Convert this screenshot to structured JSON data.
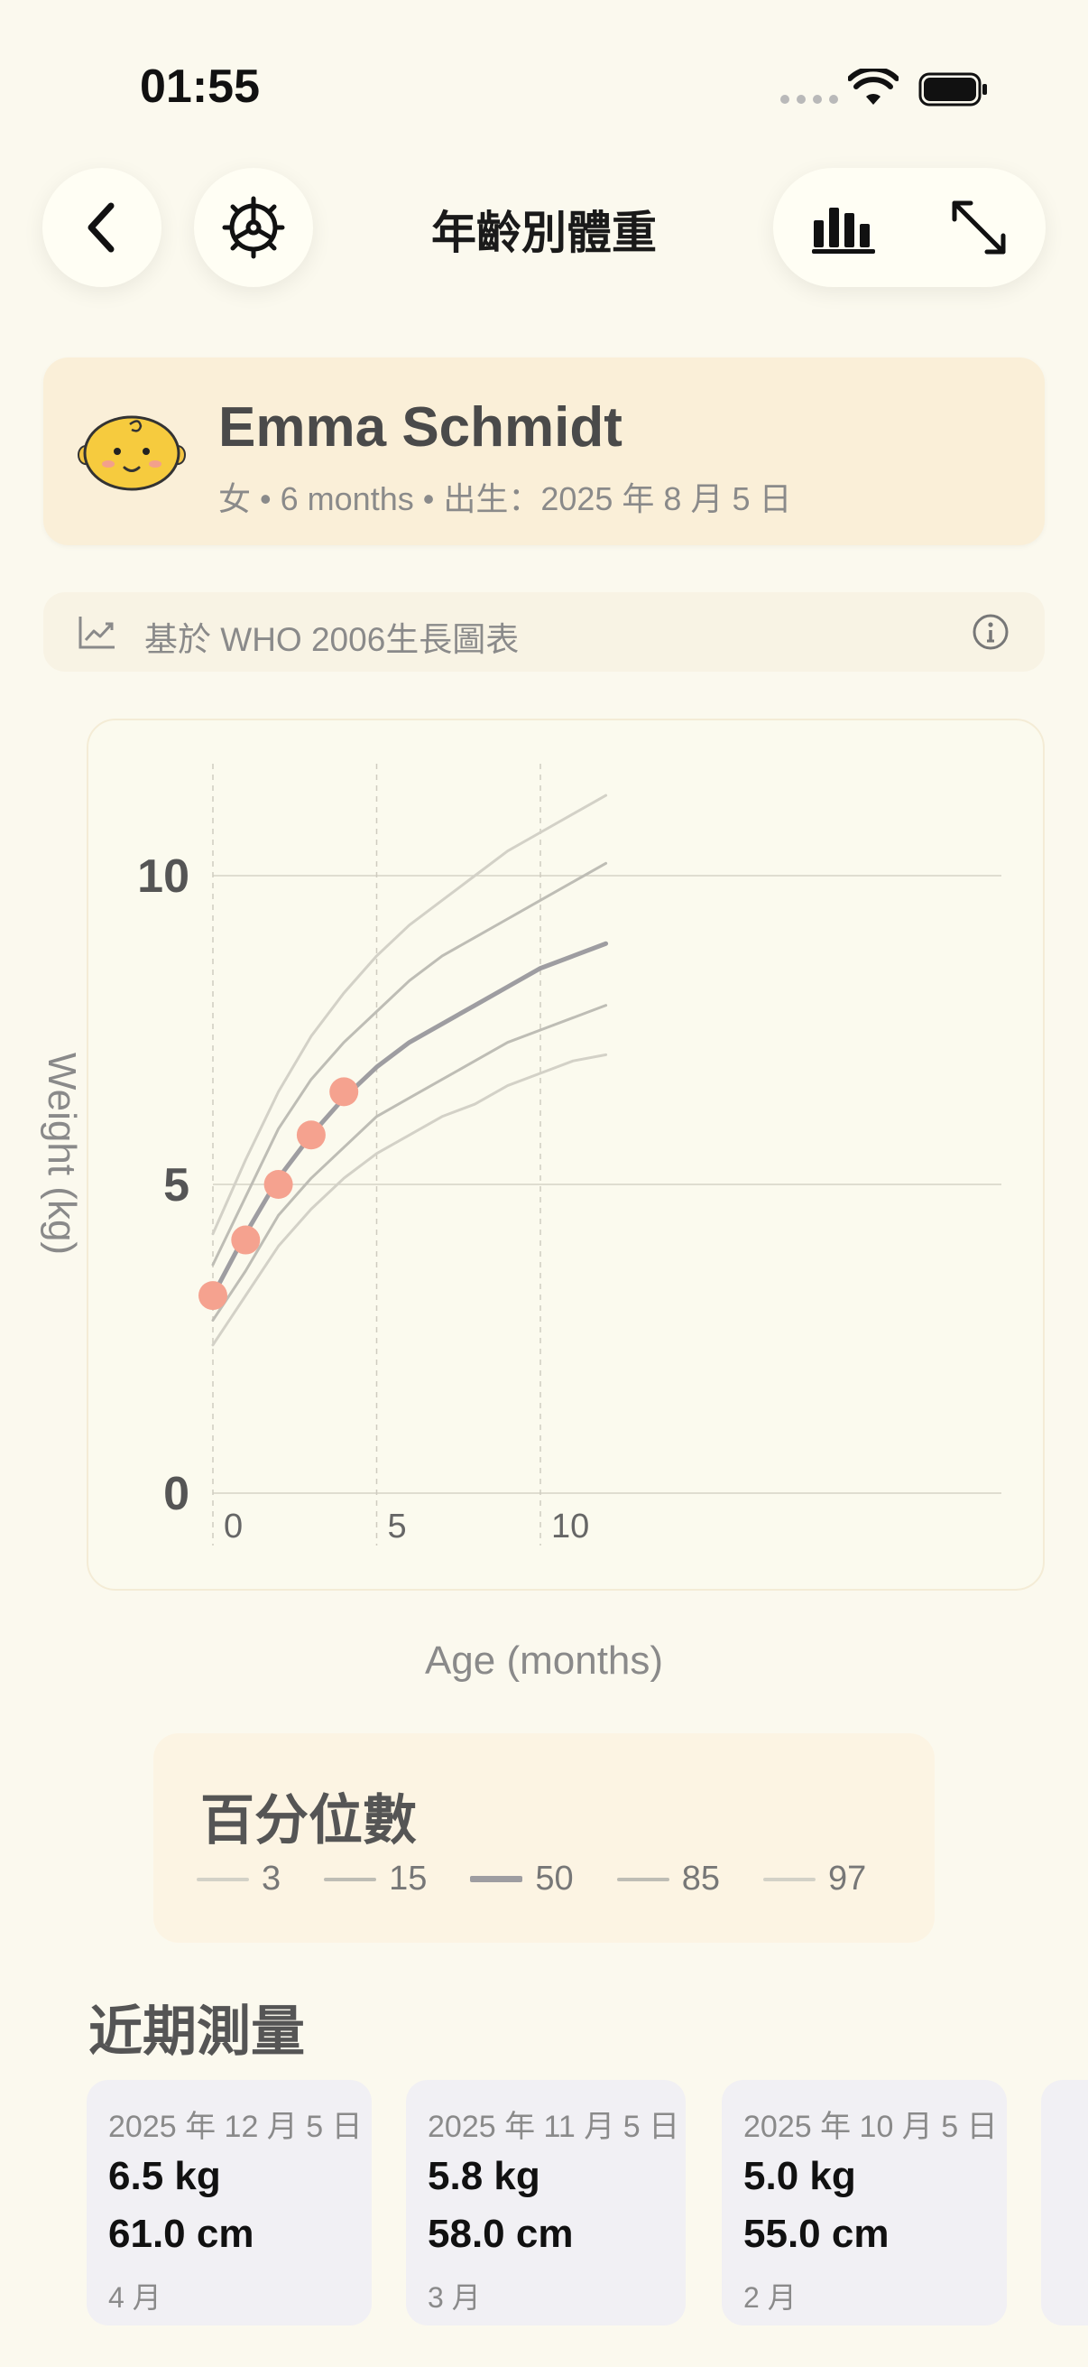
{
  "status": {
    "time": "01:55"
  },
  "header": {
    "title": "年齡別體重"
  },
  "profile": {
    "name": "Emma Schmidt",
    "gender": "女",
    "age": "6 months",
    "birth": "出生：2025 年 8 月 5 日"
  },
  "source": {
    "text": "基於 WHO 2006生長圖表"
  },
  "chart_data": {
    "type": "line",
    "xlabel": "Age (months)",
    "ylabel": "Weight (kg)",
    "xlim": [
      0,
      12
    ],
    "ylim": [
      0,
      12
    ],
    "x_ticks": [
      "0",
      "5",
      "10"
    ],
    "y_ticks": [
      "0",
      "5",
      "10"
    ],
    "grid": "on",
    "series": [
      {
        "name": "3",
        "color": "#D3D1C7",
        "width": 3,
        "x": [
          0,
          1,
          2,
          3,
          4,
          5,
          6,
          7,
          8,
          9,
          10,
          11,
          12
        ],
        "values": [
          2.4,
          3.2,
          4.0,
          4.6,
          5.1,
          5.5,
          5.8,
          6.1,
          6.3,
          6.6,
          6.8,
          7.0,
          7.1
        ]
      },
      {
        "name": "15",
        "color": "#BEBDB5",
        "width": 3,
        "x": [
          0,
          1,
          2,
          3,
          4,
          5,
          6,
          7,
          8,
          9,
          10,
          11,
          12
        ],
        "values": [
          2.8,
          3.6,
          4.5,
          5.1,
          5.6,
          6.1,
          6.4,
          6.7,
          7.0,
          7.3,
          7.5,
          7.7,
          7.9
        ]
      },
      {
        "name": "50",
        "color": "#9E9DA1",
        "width": 5,
        "x": [
          0,
          1,
          2,
          3,
          4,
          5,
          6,
          7,
          8,
          9,
          10,
          11,
          12
        ],
        "values": [
          3.2,
          4.2,
          5.1,
          5.8,
          6.4,
          6.9,
          7.3,
          7.6,
          7.9,
          8.2,
          8.5,
          8.7,
          8.9
        ]
      },
      {
        "name": "85",
        "color": "#BEBDB5",
        "width": 3,
        "x": [
          0,
          1,
          2,
          3,
          4,
          5,
          6,
          7,
          8,
          9,
          10,
          11,
          12
        ],
        "values": [
          3.7,
          4.8,
          5.9,
          6.7,
          7.3,
          7.8,
          8.3,
          8.7,
          9.0,
          9.3,
          9.6,
          9.9,
          10.2
        ]
      },
      {
        "name": "97",
        "color": "#D3D1C7",
        "width": 3,
        "x": [
          0,
          1,
          2,
          3,
          4,
          5,
          6,
          7,
          8,
          9,
          10,
          11,
          12
        ],
        "values": [
          4.2,
          5.4,
          6.5,
          7.4,
          8.1,
          8.7,
          9.2,
          9.6,
          10.0,
          10.4,
          10.7,
          11.0,
          11.3
        ]
      }
    ],
    "points": {
      "color": "#F5A28F",
      "x": [
        0,
        1,
        2,
        3,
        4
      ],
      "values": [
        3.2,
        4.1,
        5.0,
        5.8,
        6.5
      ]
    }
  },
  "legend": {
    "title": "百分位數",
    "items": [
      {
        "label": "3",
        "color": "#D3D1C7"
      },
      {
        "label": "15",
        "color": "#BEBDB5"
      },
      {
        "label": "50",
        "color": "#9E9DA1"
      },
      {
        "label": "85",
        "color": "#BEBDB5"
      },
      {
        "label": "97",
        "color": "#D3D1C7"
      }
    ]
  },
  "recent": {
    "title": "近期測量",
    "items": [
      {
        "date": "2025 年 12 月 5 日",
        "weight": "6.5 kg",
        "height": "61.0 cm",
        "age": "4 月"
      },
      {
        "date": "2025 年 11 月 5 日",
        "weight": "5.8 kg",
        "height": "58.0 cm",
        "age": "3 月"
      },
      {
        "date": "2025 年 10 月 5 日",
        "weight": "5.0 kg",
        "height": "55.0 cm",
        "age": "2 月"
      }
    ]
  }
}
